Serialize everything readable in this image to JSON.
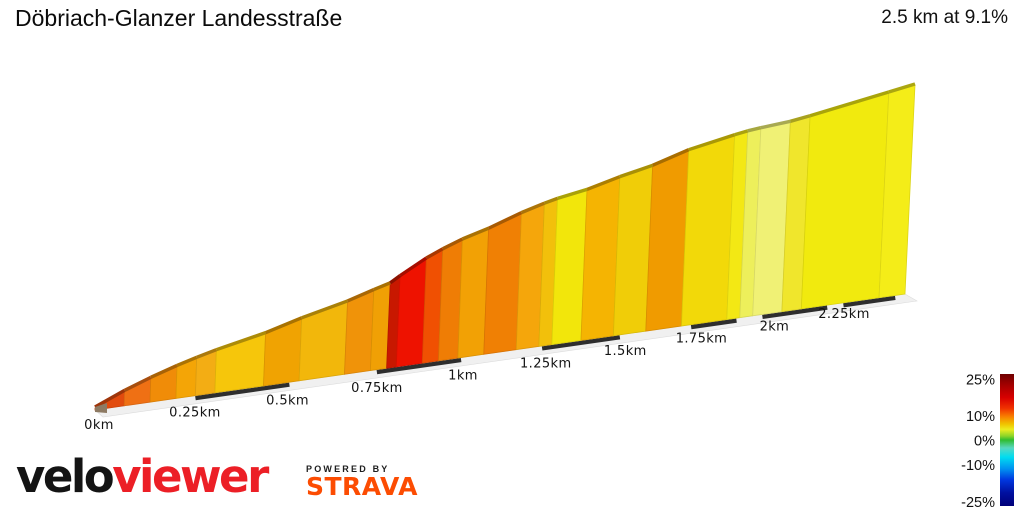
{
  "header": {
    "title": "Döbriach-Glanzer Landesstraße",
    "summary": "2.5 km at 9.1%"
  },
  "chart_data": {
    "type": "area",
    "title": "Döbriach-Glanzer Landesstraße",
    "subtitle": "2.5 km at 9.1%",
    "total_distance_km": 2.5,
    "average_gradient_pct": 9.1,
    "x_unit": "km",
    "x_ticks": [
      {
        "km": 0,
        "label": "0km"
      },
      {
        "km": 0.25,
        "label": "0.25km"
      },
      {
        "km": 0.5,
        "label": "0.5km"
      },
      {
        "km": 0.75,
        "label": "0.75km"
      },
      {
        "km": 1,
        "label": "1km"
      },
      {
        "km": 1.25,
        "label": "1.25km"
      },
      {
        "km": 1.5,
        "label": "1.5km"
      },
      {
        "km": 1.75,
        "label": "1.75km"
      },
      {
        "km": 2,
        "label": "2km"
      },
      {
        "km": 2.25,
        "label": "2.25km"
      }
    ],
    "segments": [
      {
        "from_km": 0.0,
        "to_km": 0.09,
        "gradient_pct": 13.0,
        "color": "#e24b0e"
      },
      {
        "from_km": 0.09,
        "to_km": 0.17,
        "gradient_pct": 11.5,
        "color": "#ef7014"
      },
      {
        "from_km": 0.17,
        "to_km": 0.25,
        "gradient_pct": 10.5,
        "color": "#f08c08"
      },
      {
        "from_km": 0.25,
        "to_km": 0.31,
        "gradient_pct": 9.5,
        "color": "#f4a506"
      },
      {
        "from_km": 0.31,
        "to_km": 0.37,
        "gradient_pct": 9.0,
        "color": "#f3ad14"
      },
      {
        "from_km": 0.37,
        "to_km": 0.52,
        "gradient_pct": 8.0,
        "color": "#f6c60b"
      },
      {
        "from_km": 0.52,
        "to_km": 0.63,
        "gradient_pct": 9.5,
        "color": "#f0a302"
      },
      {
        "from_km": 0.63,
        "to_km": 0.77,
        "gradient_pct": 8.5,
        "color": "#f2b70b"
      },
      {
        "from_km": 0.77,
        "to_km": 0.85,
        "gradient_pct": 10.0,
        "color": "#f09309"
      },
      {
        "from_km": 0.85,
        "to_km": 0.9,
        "gradient_pct": 9.5,
        "color": "#f0a005"
      },
      {
        "from_km": 0.9,
        "to_km": 0.93,
        "gradient_pct": 17.0,
        "color": "#c81800"
      },
      {
        "from_km": 0.93,
        "to_km": 1.01,
        "gradient_pct": 15.5,
        "color": "#ee1200"
      },
      {
        "from_km": 1.01,
        "to_km": 1.06,
        "gradient_pct": 13.0,
        "color": "#f05002"
      },
      {
        "from_km": 1.06,
        "to_km": 1.12,
        "gradient_pct": 11.5,
        "color": "#ef7d05"
      },
      {
        "from_km": 1.12,
        "to_km": 1.2,
        "gradient_pct": 9.5,
        "color": "#f2a105"
      },
      {
        "from_km": 1.2,
        "to_km": 1.3,
        "gradient_pct": 11.0,
        "color": "#f08004"
      },
      {
        "from_km": 1.3,
        "to_km": 1.37,
        "gradient_pct": 9.5,
        "color": "#f5a60b"
      },
      {
        "from_km": 1.37,
        "to_km": 1.41,
        "gradient_pct": 8.5,
        "color": "#f2c00b"
      },
      {
        "from_km": 1.41,
        "to_km": 1.5,
        "gradient_pct": 7.0,
        "color": "#f2e60b"
      },
      {
        "from_km": 1.5,
        "to_km": 1.6,
        "gradient_pct": 9.0,
        "color": "#f5b402"
      },
      {
        "from_km": 1.6,
        "to_km": 1.7,
        "gradient_pct": 8.0,
        "color": "#f0cd08"
      },
      {
        "from_km": 1.7,
        "to_km": 1.81,
        "gradient_pct": 10.0,
        "color": "#f09b00"
      },
      {
        "from_km": 1.81,
        "to_km": 1.95,
        "gradient_pct": 7.5,
        "color": "#f2d909"
      },
      {
        "from_km": 1.95,
        "to_km": 1.99,
        "gradient_pct": 7.0,
        "color": "#f3e814"
      },
      {
        "from_km": 1.99,
        "to_km": 2.03,
        "gradient_pct": 5.5,
        "color": "#edef5b"
      },
      {
        "from_km": 2.03,
        "to_km": 2.12,
        "gradient_pct": 5.0,
        "color": "#f0f175"
      },
      {
        "from_km": 2.12,
        "to_km": 2.18,
        "gradient_pct": 6.5,
        "color": "#f0e62c"
      },
      {
        "from_km": 2.18,
        "to_km": 2.42,
        "gradient_pct": 7.0,
        "color": "#f1ea0e"
      },
      {
        "from_km": 2.42,
        "to_km": 2.5,
        "gradient_pct": 7.0,
        "color": "#f4ed18"
      }
    ],
    "baseline_dashes_km": [
      [
        0.31,
        0.6
      ],
      [
        0.87,
        1.13
      ],
      [
        1.38,
        1.62
      ],
      [
        1.84,
        1.98
      ],
      [
        2.06,
        2.26
      ],
      [
        2.31,
        2.47
      ]
    ],
    "legend": {
      "position": "right",
      "ticks": [
        {
          "value": 25,
          "label": "25%"
        },
        {
          "value": 10,
          "label": "10%"
        },
        {
          "value": 0,
          "label": "0%"
        },
        {
          "value": -10,
          "label": "-10%"
        },
        {
          "value": -25,
          "label": "-25%"
        }
      ],
      "gradient_stops": [
        {
          "at": 0.0,
          "color": "#6e0000"
        },
        {
          "at": 0.09,
          "color": "#a80000"
        },
        {
          "at": 0.18,
          "color": "#d80000"
        },
        {
          "at": 0.26,
          "color": "#f03200"
        },
        {
          "at": 0.32,
          "color": "#f87c00"
        },
        {
          "at": 0.38,
          "color": "#f0c400"
        },
        {
          "at": 0.42,
          "color": "#ecec20"
        },
        {
          "at": 0.47,
          "color": "#8cd428"
        },
        {
          "at": 0.5,
          "color": "#30bc30"
        },
        {
          "at": 0.56,
          "color": "#58d8c0"
        },
        {
          "at": 0.63,
          "color": "#00dcf0"
        },
        {
          "at": 0.72,
          "color": "#0090f0"
        },
        {
          "at": 0.8,
          "color": "#0038e0"
        },
        {
          "at": 0.9,
          "color": "#0010a0"
        },
        {
          "at": 1.0,
          "color": "#000078"
        }
      ]
    },
    "layout": {
      "grid": false,
      "background": "#ffffff",
      "legend_position": "right"
    }
  },
  "footer": {
    "brand_black": "velo",
    "brand_red": "viewer",
    "powered_by": "POWERED BY",
    "strava": "STRAVA",
    "brand_red_color": "#ec1f26",
    "strava_color": "#fc4c02"
  }
}
